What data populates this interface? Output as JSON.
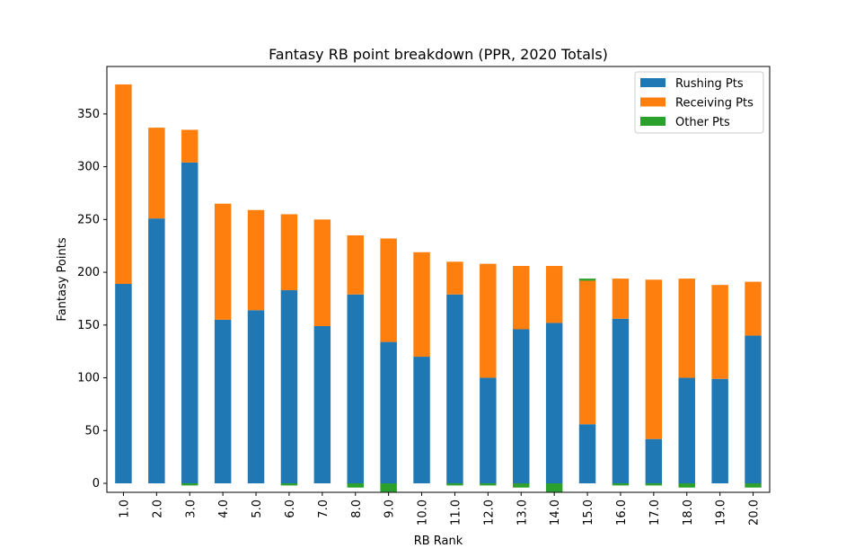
{
  "chart_data": {
    "type": "bar",
    "stacked": true,
    "title": "Fantasy RB point breakdown (PPR, 2020 Totals)",
    "xlabel": "RB Rank",
    "ylabel": "Fantasy Points",
    "categories": [
      "1.0",
      "2.0",
      "3.0",
      "4.0",
      "5.0",
      "6.0",
      "7.0",
      "8.0",
      "9.0",
      "10.0",
      "11.0",
      "12.0",
      "13.0",
      "14.0",
      "15.0",
      "16.0",
      "17.0",
      "18.0",
      "19.0",
      "20.0"
    ],
    "series": [
      {
        "name": "Rushing Pts",
        "color": "#1f77b4",
        "values": [
          189,
          251,
          304,
          155,
          164,
          183,
          149,
          179,
          134,
          120,
          179,
          100,
          146,
          152,
          56,
          156,
          42,
          100,
          99,
          140
        ]
      },
      {
        "name": "Receiving Pts",
        "color": "#ff7f0e",
        "values": [
          189,
          86,
          31,
          110,
          95,
          72,
          101,
          56,
          98,
          99,
          31,
          108,
          60,
          54,
          136,
          38,
          151,
          94,
          89,
          51
        ]
      },
      {
        "name": "Other Pts",
        "color": "#2ca02c",
        "values": [
          0,
          0,
          -2,
          0,
          0,
          -2,
          0,
          -4,
          -8,
          0,
          -2,
          -2,
          -4,
          -8,
          2,
          -2,
          -2,
          -4,
          0,
          -4
        ]
      }
    ],
    "ylim": [
      -8.5,
      395
    ],
    "yticks": [
      0,
      50,
      100,
      150,
      200,
      250,
      300,
      350
    ],
    "legend": {
      "placement": "top-right",
      "entries": [
        "Rushing Pts",
        "Receiving Pts",
        "Other Pts"
      ]
    },
    "grid": false
  }
}
